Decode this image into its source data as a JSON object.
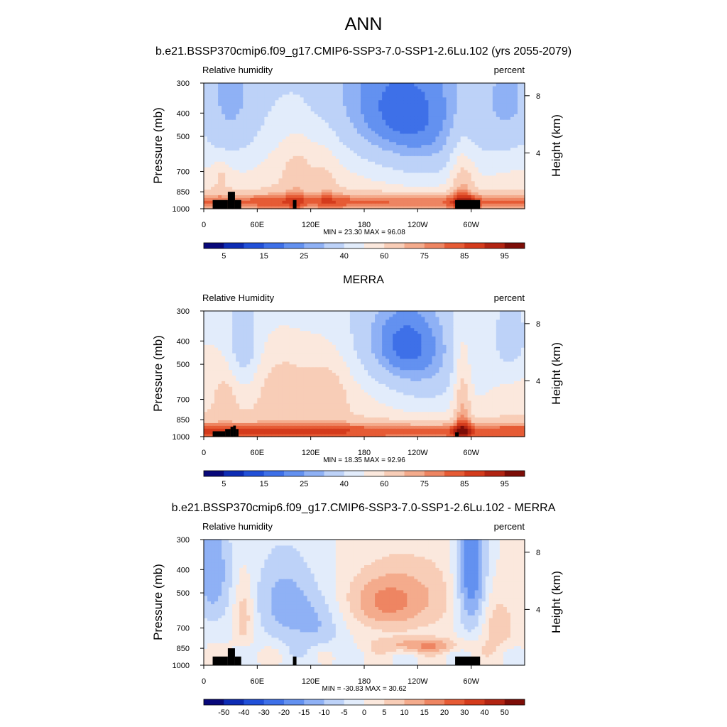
{
  "figure": {
    "title": "ANN"
  },
  "chart_data": [
    {
      "type": "heatmap",
      "title": "b.e21.BSSP370cmip6.f09_g17.CMIP6-SSP3-7.0-SSP1-2.6Lu.102 (yrs 2055-2079)",
      "variable_label": "Relative humidity",
      "units": "percent",
      "ylabel": "Pressure (mb)",
      "ylabel_right": "Height (km)",
      "x_ticks": [
        "0",
        "60E",
        "120E",
        "180",
        "120W",
        "60W"
      ],
      "x_tick_values": [
        0,
        60,
        120,
        180,
        240,
        300
      ],
      "xlim": [
        0,
        360
      ],
      "y_ticks": [
        "300",
        "400",
        "500",
        "700",
        "850",
        "1000"
      ],
      "y_tick_values": [
        300,
        400,
        500,
        700,
        850,
        1000
      ],
      "ylim": [
        1000,
        300
      ],
      "y_scale": "log",
      "height_ticks": [
        "8",
        "4"
      ],
      "height_tick_values": [
        8,
        4
      ],
      "stats": "MIN = 23.30  MAX = 96.08",
      "min": 23.3,
      "max": 96.08,
      "colorbar_labels": [
        "5",
        "15",
        "25",
        "40",
        "60",
        "75",
        "85",
        "95"
      ],
      "colorbar_levels": [
        5,
        10,
        15,
        20,
        25,
        30,
        40,
        50,
        60,
        70,
        75,
        80,
        85,
        90,
        95
      ],
      "colormap": "blue-white-red"
    },
    {
      "type": "heatmap",
      "title": "MERRA",
      "variable_label": "Relative Humidity",
      "units": "percent",
      "ylabel": "Pressure (mb)",
      "ylabel_right": "Height (km)",
      "x_ticks": [
        "0",
        "60E",
        "120E",
        "180",
        "120W",
        "60W"
      ],
      "x_tick_values": [
        0,
        60,
        120,
        180,
        240,
        300
      ],
      "xlim": [
        0,
        360
      ],
      "y_ticks": [
        "300",
        "400",
        "500",
        "700",
        "850",
        "1000"
      ],
      "y_tick_values": [
        300,
        400,
        500,
        700,
        850,
        1000
      ],
      "ylim": [
        1000,
        300
      ],
      "y_scale": "log",
      "height_ticks": [
        "8",
        "4"
      ],
      "height_tick_values": [
        8,
        4
      ],
      "stats": "MIN = 18.35  MAX = 92.96",
      "min": 18.35,
      "max": 92.96,
      "colorbar_labels": [
        "5",
        "15",
        "25",
        "40",
        "60",
        "75",
        "85",
        "95"
      ],
      "colorbar_levels": [
        5,
        10,
        15,
        20,
        25,
        30,
        40,
        50,
        60,
        70,
        75,
        80,
        85,
        90,
        95
      ],
      "colormap": "blue-white-red"
    },
    {
      "type": "heatmap",
      "title": "b.e21.BSSP370cmip6.f09_g17.CMIP6-SSP3-7.0-SSP1-2.6Lu.102 - MERRA",
      "variable_label": "Relative humidity",
      "units": "percent",
      "ylabel": "Pressure (mb)",
      "ylabel_right": "Height (km)",
      "x_ticks": [
        "0",
        "60E",
        "120E",
        "180",
        "120W",
        "60W"
      ],
      "x_tick_values": [
        0,
        60,
        120,
        180,
        240,
        300
      ],
      "xlim": [
        0,
        360
      ],
      "y_ticks": [
        "300",
        "400",
        "500",
        "700",
        "850",
        "1000"
      ],
      "y_tick_values": [
        300,
        400,
        500,
        700,
        850,
        1000
      ],
      "ylim": [
        1000,
        300
      ],
      "y_scale": "log",
      "height_ticks": [
        "8",
        "4"
      ],
      "height_tick_values": [
        8,
        4
      ],
      "stats": "MIN = -30.83  MAX = 30.62",
      "min": -30.83,
      "max": 30.62,
      "colorbar_labels": [
        "-50",
        "-40",
        "-30",
        "-20",
        "-15",
        "-10",
        "-5",
        "0",
        "5",
        "10",
        "15",
        "20",
        "30",
        "40",
        "50"
      ],
      "colorbar_levels": [
        -50,
        -40,
        -30,
        -20,
        -15,
        -10,
        -5,
        0,
        5,
        10,
        15,
        20,
        30,
        40,
        50
      ],
      "colormap": "blue-white-red"
    }
  ],
  "colors": {
    "palette": [
      "#08087a",
      "#0d2cb4",
      "#2150d8",
      "#3e70e8",
      "#6391f0",
      "#8fb1f5",
      "#bdd2f8",
      "#e2ecfb",
      "#fbe8dd",
      "#f8cdb7",
      "#f4ab8c",
      "#ee8562",
      "#e65b35",
      "#d43b1c",
      "#b22412",
      "#7d0d07"
    ],
    "land": "#000000"
  }
}
